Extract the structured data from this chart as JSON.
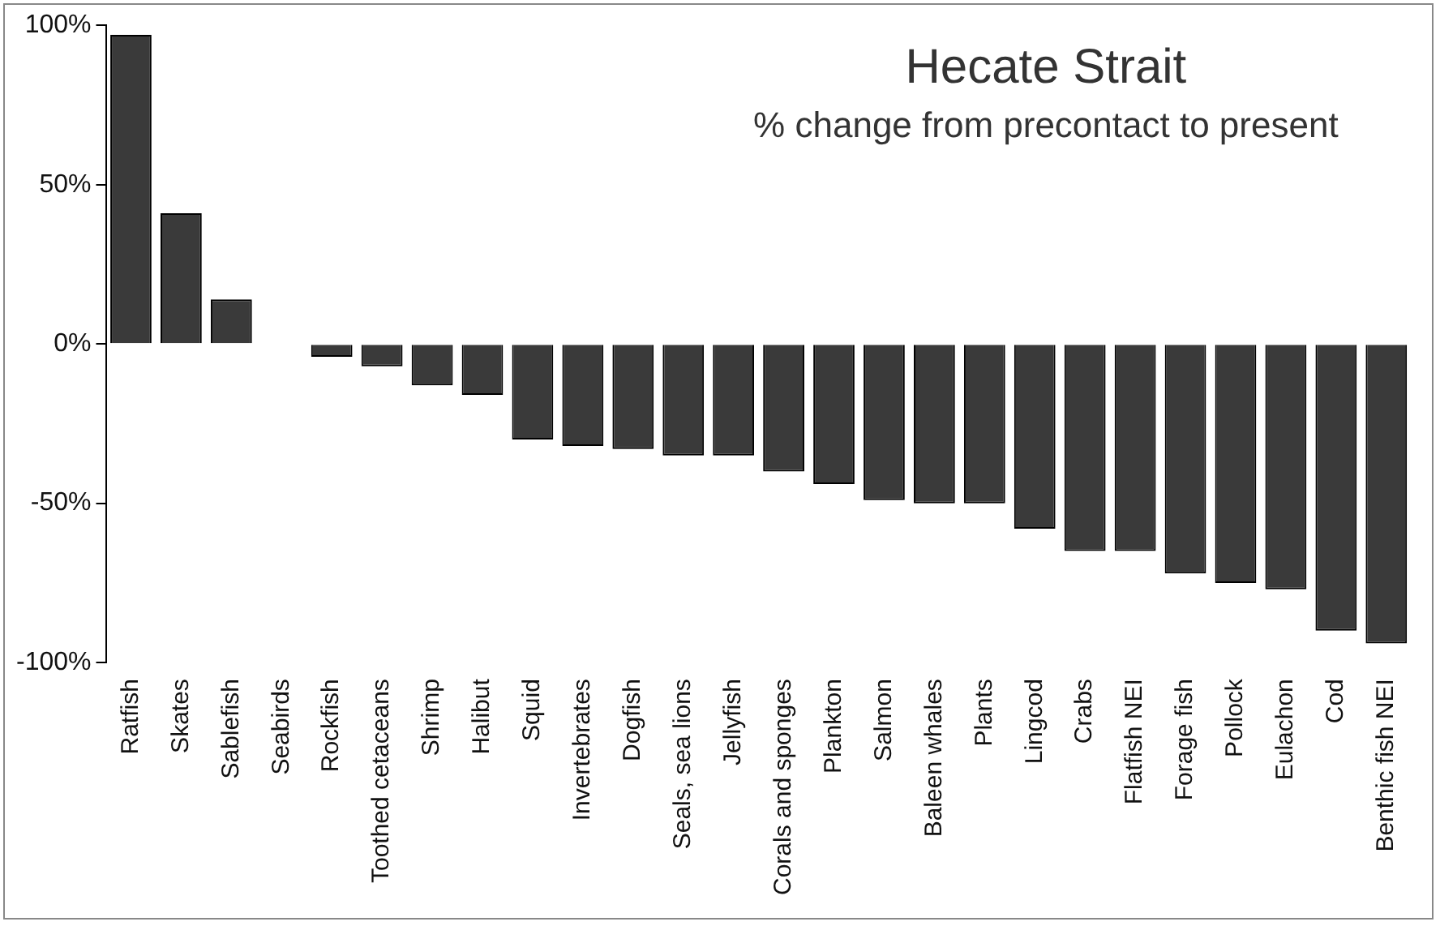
{
  "chart_data": {
    "type": "bar",
    "title": "Hecate Strait",
    "subtitle": "% change from precontact to present",
    "categories": [
      "Ratfish",
      "Skates",
      "Sablefish",
      "Seabirds",
      "Rockfish",
      "Toothed cetaceans",
      "Shrimp",
      "Halibut",
      "Squid",
      "Invertebrates",
      "Dogfish",
      "Seals, sea lions",
      "Jellyfish",
      "Corals and sponges",
      "Plankton",
      "Salmon",
      "Baleen whales",
      "Plants",
      "Lingcod",
      "Crabs",
      "Flatfish NEI",
      "Forage fish",
      "Pollock",
      "Eulachon",
      "Cod",
      "Benthic fish NEI"
    ],
    "values": [
      97,
      41,
      14,
      0,
      -4,
      -7,
      -13,
      -16,
      -30,
      -32,
      -33,
      -35,
      -35,
      -40,
      -44,
      -49,
      -50,
      -50,
      -58,
      -65,
      -65,
      -72,
      -75,
      -77,
      -90,
      -94
    ],
    "color": "#3a3a3a",
    "ylim": [
      -100,
      100
    ],
    "yticks": [
      {
        "value": 100,
        "label": "100%"
      },
      {
        "value": 50,
        "label": "50%"
      },
      {
        "value": 0,
        "label": "0%"
      },
      {
        "value": -50,
        "label": "-50%"
      },
      {
        "value": -100,
        "label": "-100%"
      }
    ],
    "grid": false,
    "legend": false
  }
}
